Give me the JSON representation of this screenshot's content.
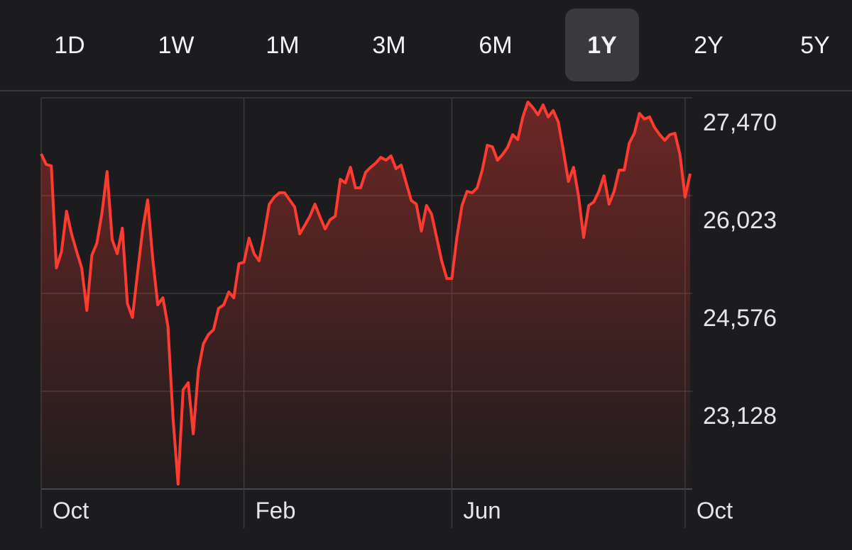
{
  "tabs": [
    "1D",
    "1W",
    "1M",
    "3M",
    "6M",
    "1Y",
    "2Y",
    "5Y"
  ],
  "selected_tab": 5,
  "chart_data": {
    "type": "line",
    "color": "#ff3b30",
    "grid": true,
    "values": [
      26641,
      26484,
      26463,
      24953,
      25194,
      25792,
      25456,
      25194,
      24953,
      24324,
      25142,
      25320,
      25771,
      26379,
      25372,
      25163,
      25540,
      24428,
      24219,
      24879,
      25509,
      25960,
      25089,
      24407,
      24512,
      24093,
      22729,
      21754,
      23149,
      23254,
      22499,
      23443,
      23831,
      23967,
      24040,
      24355,
      24407,
      24596,
      24512,
      25016,
      25037,
      25393,
      25163,
      25058,
      25456,
      25897,
      26002,
      26065,
      26065,
      25960,
      25855,
      25456,
      25582,
      25719,
      25897,
      25708,
      25530,
      25666,
      25719,
      26264,
      26211,
      26442,
      26138,
      26138,
      26369,
      26442,
      26505,
      26589,
      26547,
      26610,
      26421,
      26474,
      26211,
      25949,
      25897,
      25498,
      25876,
      25750,
      25404,
      25058,
      24796,
      24796,
      25404,
      25876,
      26086,
      26065,
      26138,
      26400,
      26767,
      26746,
      26547,
      26631,
      26736,
      26925,
      26851,
      27187,
      27407,
      27323,
      27218,
      27365,
      27187,
      27281,
      27113,
      26683,
      26232,
      26442,
      26012,
      25404,
      25876,
      25928,
      26086,
      26316,
      25897,
      26086,
      26400,
      26400,
      26799,
      26946,
      27239,
      27155,
      27187,
      27030,
      26925,
      26841,
      26925,
      26946,
      26631,
      26002,
      26348
    ],
    "xlim": [
      0,
      128
    ],
    "xticks": [
      {
        "value": 0,
        "label": "Oct"
      },
      {
        "value": 40,
        "label": "Feb"
      },
      {
        "value": 81,
        "label": "Jun"
      },
      {
        "value": 127,
        "label": "Oct"
      }
    ],
    "ylim": [
      21681,
      27470
    ],
    "yticks": [
      {
        "value": 27470,
        "label": "27,470"
      },
      {
        "value": 26023,
        "label": "26,023"
      },
      {
        "value": 24576,
        "label": "24,576"
      },
      {
        "value": 23128,
        "label": "23,128"
      }
    ]
  }
}
